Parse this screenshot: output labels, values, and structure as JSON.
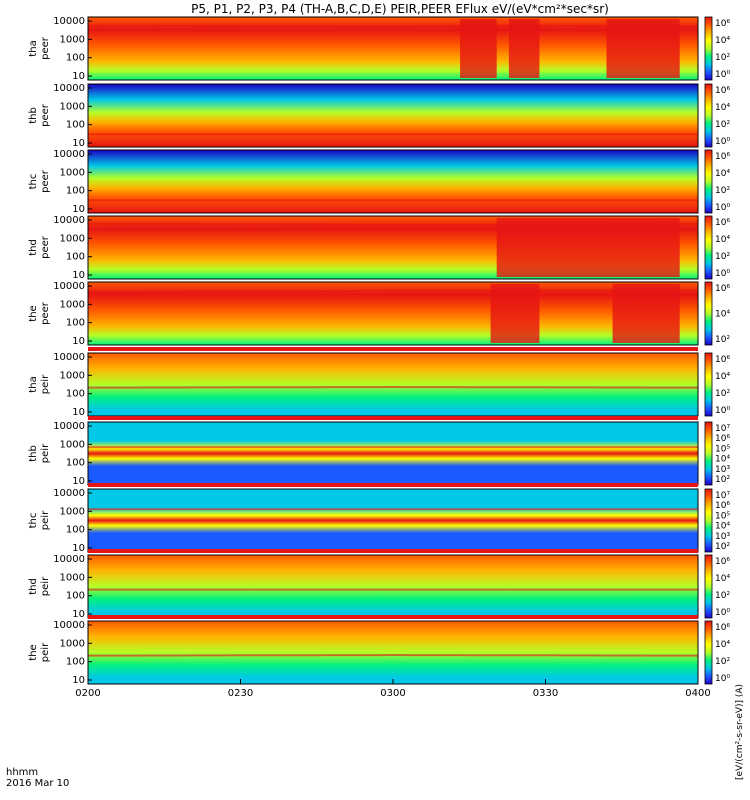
{
  "title": "P5, P1, P2, P3, P4 (TH-A,B,C,D,E) PEIR,PEER EFlux eV/(eV*cm²*sec*sr)",
  "colorbar_label": "[eV/(cm²-s-sr-eV)] (A)",
  "x_footer": {
    "unit": "hhmm",
    "date": "2016 Mar 10"
  },
  "palette": [
    "#000000",
    "#1e00c8",
    "#1a5aff",
    "#00c8e6",
    "#00f080",
    "#b4ff28",
    "#ffff00",
    "#ffb400",
    "#ff5a00",
    "#e61414",
    "#ffffff"
  ],
  "chart_data": {
    "type": "heatmap",
    "x": {
      "start": "0200",
      "end": "0400",
      "ticks": [
        "0200",
        "0230",
        "0300",
        "0330",
        "0400"
      ]
    },
    "y_scale": "log",
    "y_ticks": [
      "10",
      "100",
      "1000",
      "10000"
    ],
    "panels": [
      {
        "probe": "tha",
        "product": "peer",
        "cb_ticks": [
          "10⁶",
          "10⁴",
          "10²",
          "10⁰"
        ],
        "profile": [
          {
            "x": 0,
            "y": 0.86
          },
          {
            "x": 0.5,
            "y": 0.85
          },
          {
            "x": 0.7,
            "y": 0.86
          },
          {
            "x": 1,
            "y": 0.85
          }
        ],
        "bursts": [
          [
            0.61,
            0.67
          ],
          [
            0.69,
            0.74
          ],
          [
            0.85,
            0.97
          ]
        ]
      },
      {
        "probe": "thb",
        "product": "peer",
        "cb_ticks": [
          "10⁶",
          "10⁴",
          "10²",
          "10⁰"
        ],
        "profile": [
          {
            "x": 0,
            "y": 0.2
          },
          {
            "x": 0.5,
            "y": 0.2
          },
          {
            "x": 1,
            "y": 0.2
          }
        ],
        "bursts": []
      },
      {
        "probe": "thc",
        "product": "peer",
        "cb_ticks": [
          "10⁶",
          "10⁴",
          "10²",
          "10⁰"
        ],
        "profile": [
          {
            "x": 0,
            "y": 0.2
          },
          {
            "x": 0.5,
            "y": 0.2
          },
          {
            "x": 1,
            "y": 0.2
          }
        ],
        "bursts": []
      },
      {
        "probe": "thd",
        "product": "peer",
        "cb_ticks": [
          "10⁶",
          "10⁴",
          "10²",
          "10⁰"
        ],
        "profile": [
          {
            "x": 0,
            "y": 0.88
          },
          {
            "x": 0.5,
            "y": 0.86
          },
          {
            "x": 0.7,
            "y": 0.86
          },
          {
            "x": 1,
            "y": 0.88
          }
        ],
        "bursts": [
          [
            0.67,
            0.97
          ]
        ]
      },
      {
        "probe": "the",
        "product": "peer",
        "cb_ticks": [
          "10⁶",
          "10⁴",
          "10²"
        ],
        "profile": [
          {
            "x": 0,
            "y": 0.84
          },
          {
            "x": 0.5,
            "y": 0.86
          },
          {
            "x": 1,
            "y": 0.86
          }
        ],
        "bursts": [
          [
            0.66,
            0.74
          ],
          [
            0.86,
            0.97
          ]
        ]
      },
      {
        "probe": "tha",
        "product": "peir",
        "cb_ticks": [
          "10⁶",
          "10⁴",
          "10²",
          "10⁰"
        ],
        "profile": [
          {
            "x": 0,
            "y": 0.45
          },
          {
            "x": 0.5,
            "y": 0.46
          },
          {
            "x": 1,
            "y": 0.45
          }
        ],
        "bursts": []
      },
      {
        "probe": "thb",
        "product": "peir",
        "cb_ticks": [
          "10⁷",
          "10⁶",
          "10⁵",
          "10⁴",
          "10³",
          "10²"
        ],
        "profile": [
          {
            "x": 0,
            "y": 0.6
          },
          {
            "x": 0.5,
            "y": 0.6
          },
          {
            "x": 1,
            "y": 0.6
          }
        ],
        "bursts": []
      },
      {
        "probe": "thc",
        "product": "peir",
        "cb_ticks": [
          "10⁷",
          "10⁶",
          "10⁵",
          "10⁴",
          "10³",
          "10²"
        ],
        "profile": [
          {
            "x": 0,
            "y": 0.68
          },
          {
            "x": 0.5,
            "y": 0.68
          },
          {
            "x": 1,
            "y": 0.68
          }
        ],
        "bursts": []
      },
      {
        "probe": "thd",
        "product": "peir",
        "cb_ticks": [
          "10⁶",
          "10⁴",
          "10²",
          "10⁰"
        ],
        "profile": [
          {
            "x": 0,
            "y": 0.45
          },
          {
            "x": 0.5,
            "y": 0.45
          },
          {
            "x": 1,
            "y": 0.45
          }
        ],
        "bursts": []
      },
      {
        "probe": "the",
        "product": "peir",
        "cb_ticks": [
          "10⁶",
          "10⁴",
          "10²",
          "10⁰"
        ],
        "profile": [
          {
            "x": 0,
            "y": 0.45
          },
          {
            "x": 0.5,
            "y": 0.46
          },
          {
            "x": 1,
            "y": 0.45
          }
        ],
        "bursts": []
      }
    ]
  }
}
